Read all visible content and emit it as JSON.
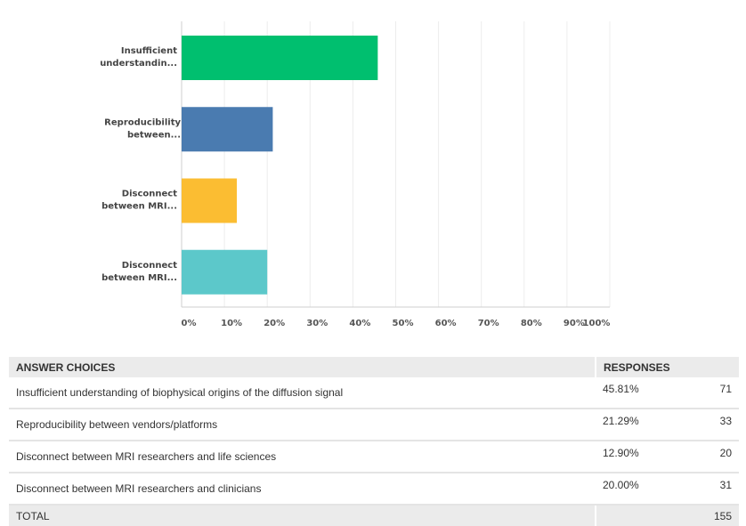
{
  "chart_data": {
    "type": "bar",
    "orientation": "horizontal",
    "categories": [
      "Insufficient understandin...",
      "Reproducibility between...",
      "Disconnect between MRI...",
      "Disconnect between MRI..."
    ],
    "category_lines": [
      [
        "Insufficient",
        "understandin..."
      ],
      [
        "Reproducibility",
        "between..."
      ],
      [
        "Disconnect",
        "between MRI..."
      ],
      [
        "Disconnect",
        "between MRI..."
      ]
    ],
    "values": [
      45.81,
      21.29,
      12.9,
      20.0
    ],
    "colors": [
      "#00bf6f",
      "#4a7bb0",
      "#fbbd32",
      "#5cc8ca"
    ],
    "xlim": [
      0,
      100
    ],
    "xticks": [
      "0%",
      "10%",
      "20%",
      "30%",
      "40%",
      "50%",
      "60%",
      "70%",
      "80%",
      "90%",
      "100%"
    ],
    "grid": true,
    "title": "",
    "xlabel": "",
    "ylabel": ""
  },
  "table": {
    "headers": {
      "choices": "ANSWER CHOICES",
      "responses": "RESPONSES"
    },
    "rows": [
      {
        "choice": "Insufficient understanding of biophysical origins of the diffusion signal",
        "percent": "45.81%",
        "count": "71"
      },
      {
        "choice": "Reproducibility between vendors/platforms",
        "percent": "21.29%",
        "count": "33"
      },
      {
        "choice": "Disconnect between MRI researchers and life sciences",
        "percent": "12.90%",
        "count": "20"
      },
      {
        "choice": "Disconnect between MRI researchers and clinicians",
        "percent": "20.00%",
        "count": "31"
      }
    ],
    "total_label": "TOTAL",
    "total_count": "155"
  }
}
